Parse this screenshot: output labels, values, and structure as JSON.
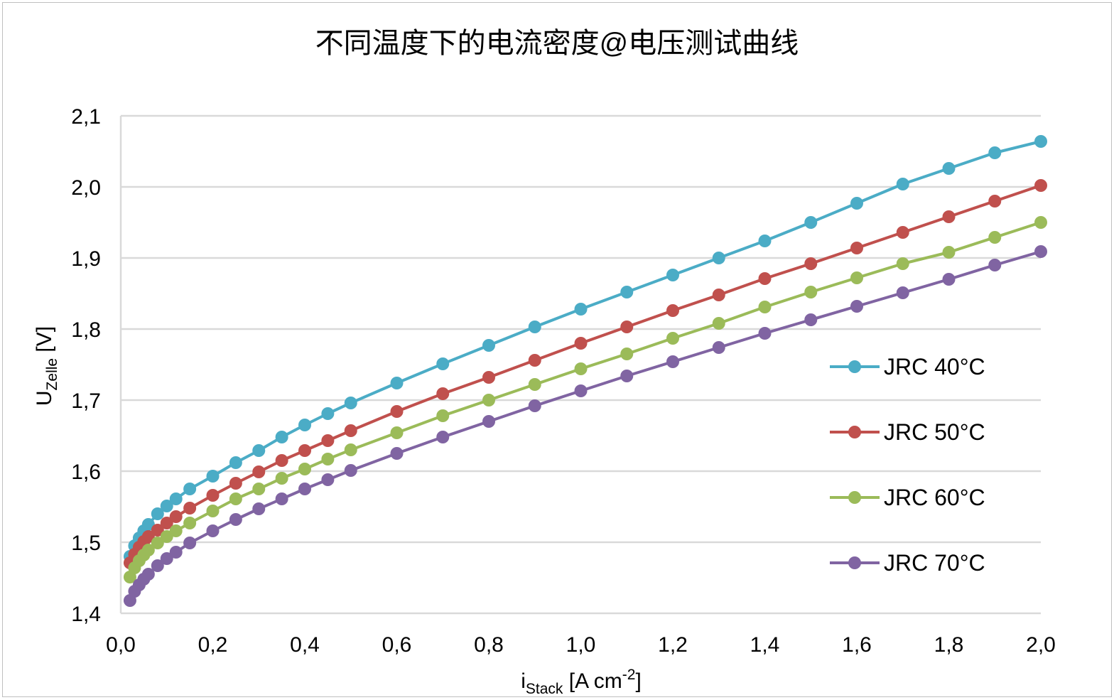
{
  "chart_data": {
    "type": "line",
    "title": "不同温度下的电流密度@电压测试曲线",
    "xlabel": {
      "main": "i",
      "sub": "Stack",
      "rest": " [A cm",
      "sup": "-2",
      "close": "]"
    },
    "ylabel": {
      "main": "U",
      "sub": "Zelle",
      "rest": " [V]"
    },
    "xlim": [
      0.0,
      2.0
    ],
    "ylim": [
      1.4,
      2.1
    ],
    "x_ticks": [
      "0,0",
      "0,2",
      "0,4",
      "0,6",
      "0,8",
      "1,0",
      "1,2",
      "1,4",
      "1,6",
      "1,8",
      "2,0"
    ],
    "x_tick_values": [
      0.0,
      0.2,
      0.4,
      0.6,
      0.8,
      1.0,
      1.2,
      1.4,
      1.6,
      1.8,
      2.0
    ],
    "y_ticks": [
      "1,4",
      "1,5",
      "1,6",
      "1,7",
      "1,8",
      "1,9",
      "2,0",
      "2,1"
    ],
    "y_tick_values": [
      1.4,
      1.5,
      1.6,
      1.7,
      1.8,
      1.9,
      2.0,
      2.1
    ],
    "grid": "horizontal",
    "legend_position": "right",
    "x": [
      0.02,
      0.03,
      0.04,
      0.05,
      0.06,
      0.08,
      0.1,
      0.12,
      0.15,
      0.2,
      0.25,
      0.3,
      0.35,
      0.4,
      0.45,
      0.5,
      0.6,
      0.7,
      0.8,
      0.9,
      1.0,
      1.1,
      1.2,
      1.3,
      1.4,
      1.5,
      1.6,
      1.7,
      1.8,
      1.9,
      2.0
    ],
    "series": [
      {
        "name": "JRC 40°C",
        "color": "#4bacc6",
        "values": [
          1.48,
          1.495,
          1.506,
          1.516,
          1.525,
          1.54,
          1.551,
          1.561,
          1.575,
          1.593,
          1.612,
          1.629,
          1.648,
          1.665,
          1.681,
          1.696,
          1.724,
          1.751,
          1.777,
          1.803,
          1.828,
          1.852,
          1.876,
          1.9,
          1.924,
          1.95,
          1.977,
          2.004,
          2.026,
          2.048,
          2.064
        ]
      },
      {
        "name": "JRC 50°C",
        "color": "#c0504d",
        "values": [
          1.471,
          1.483,
          1.493,
          1.501,
          1.508,
          1.517,
          1.527,
          1.536,
          1.548,
          1.566,
          1.583,
          1.599,
          1.615,
          1.629,
          1.643,
          1.657,
          1.684,
          1.709,
          1.732,
          1.756,
          1.78,
          1.803,
          1.826,
          1.848,
          1.871,
          1.892,
          1.914,
          1.936,
          1.958,
          1.98,
          2.002
        ]
      },
      {
        "name": "JRC 60°C",
        "color": "#9bbb59",
        "values": [
          1.451,
          1.464,
          1.474,
          1.482,
          1.489,
          1.499,
          1.508,
          1.516,
          1.527,
          1.544,
          1.561,
          1.575,
          1.59,
          1.603,
          1.617,
          1.63,
          1.654,
          1.678,
          1.7,
          1.722,
          1.744,
          1.765,
          1.787,
          1.808,
          1.831,
          1.852,
          1.872,
          1.892,
          1.908,
          1.929,
          1.95
        ]
      },
      {
        "name": "JRC 70°C",
        "color": "#8064a2",
        "values": [
          1.418,
          1.431,
          1.44,
          1.448,
          1.455,
          1.467,
          1.477,
          1.486,
          1.499,
          1.516,
          1.532,
          1.547,
          1.561,
          1.575,
          1.588,
          1.601,
          1.625,
          1.648,
          1.67,
          1.692,
          1.713,
          1.734,
          1.754,
          1.774,
          1.794,
          1.813,
          1.832,
          1.851,
          1.87,
          1.89,
          1.909
        ]
      }
    ]
  }
}
